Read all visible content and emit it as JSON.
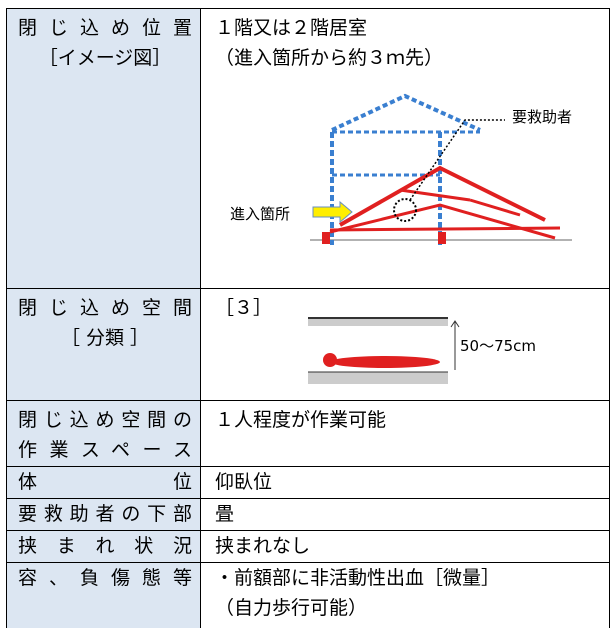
{
  "table": {
    "rows": [
      {
        "label": [
          "閉じ込め位置",
          "［イメージ図］"
        ],
        "content": [
          "１階又は２階居室",
          "（進入箇所から約３ｍ先）"
        ],
        "diagram": {
          "victim": "要救助者",
          "entry": "進入箇所"
        }
      },
      {
        "label": [
          "閉じ込め空間",
          "［ 分類 ］"
        ],
        "content": [
          "［３］"
        ],
        "diagram": {
          "height": "50～75cm"
        }
      },
      {
        "label": [
          "閉じ込め空間の",
          "作業スペース"
        ],
        "content": [
          "１人程度が作業可能"
        ]
      },
      {
        "label": [
          "体　　位"
        ],
        "content": [
          "仰臥位"
        ]
      },
      {
        "label": [
          "要救助者の下部"
        ],
        "content": [
          "畳"
        ]
      },
      {
        "label": [
          "挟まれ状況"
        ],
        "content": [
          "挟まれなし"
        ]
      },
      {
        "label": [
          "容、負傷態等"
        ],
        "content": [
          "・前額部に非活動性出血［微量］",
          "（自力歩行可能）"
        ]
      }
    ]
  }
}
